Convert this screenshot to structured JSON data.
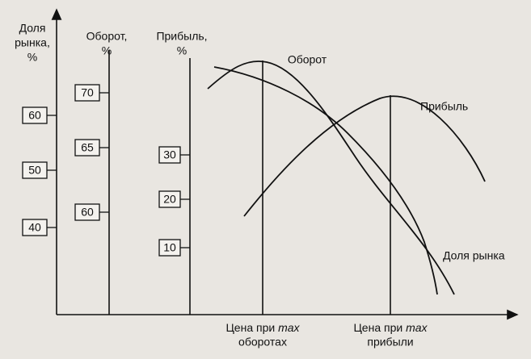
{
  "axes": [
    {
      "label_lines": [
        "Доля",
        "рынка,",
        "%"
      ],
      "ticks": [
        "60",
        "50",
        "40"
      ]
    },
    {
      "label_lines": [
        "Оборот,",
        "%"
      ],
      "ticks": [
        "70",
        "65",
        "60"
      ]
    },
    {
      "label_lines": [
        "Прибыль,",
        "%"
      ],
      "ticks": [
        "30",
        "20",
        "10"
      ]
    }
  ],
  "curves": [
    {
      "label": "Оборот"
    },
    {
      "label": "Прибыль"
    },
    {
      "label": "Доля рынка"
    }
  ],
  "markers": [
    {
      "prefix": "Цена при ",
      "emphasis": "max",
      "second_line": "оборотах"
    },
    {
      "prefix": "Цена при ",
      "emphasis": "max",
      "second_line": "прибыли"
    }
  ]
}
